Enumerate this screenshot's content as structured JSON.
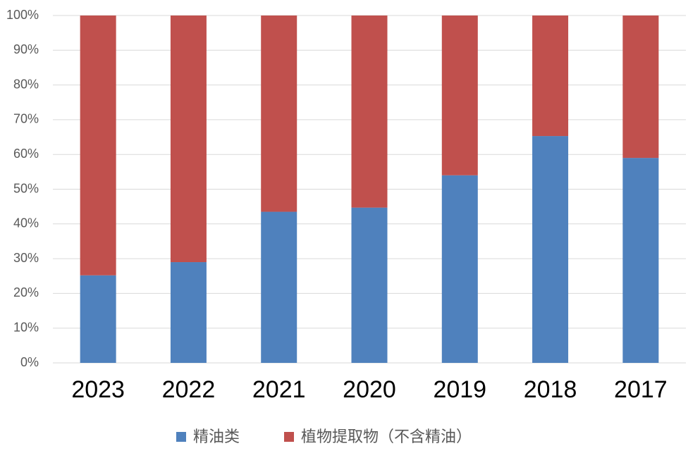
{
  "chart_data": {
    "type": "stacked_bar",
    "categories": [
      "2023",
      "2022",
      "2021",
      "2020",
      "2019",
      "2018",
      "2017"
    ],
    "series": [
      {
        "name": "精油类",
        "color": "#4f81bd",
        "values": [
          25.2,
          29,
          43.5,
          44.7,
          54,
          65.3,
          59
        ]
      },
      {
        "name": "植物提取物（不含精油）",
        "color": "#c0504d",
        "values": [
          74.8,
          71,
          56.5,
          55.3,
          46,
          34.7,
          41
        ]
      }
    ],
    "ylim": [
      0,
      100
    ],
    "yticks": [
      {
        "value": 0,
        "label": "0%"
      },
      {
        "value": 10,
        "label": "10%"
      },
      {
        "value": 20,
        "label": "20%"
      },
      {
        "value": 30,
        "label": "30%"
      },
      {
        "value": 40,
        "label": "40%"
      },
      {
        "value": 50,
        "label": "50%"
      },
      {
        "value": 60,
        "label": "60%"
      },
      {
        "value": 70,
        "label": "70%"
      },
      {
        "value": 80,
        "label": "80%"
      },
      {
        "value": 90,
        "label": "90%"
      },
      {
        "value": 100,
        "label": "100%"
      }
    ],
    "grid": true
  }
}
